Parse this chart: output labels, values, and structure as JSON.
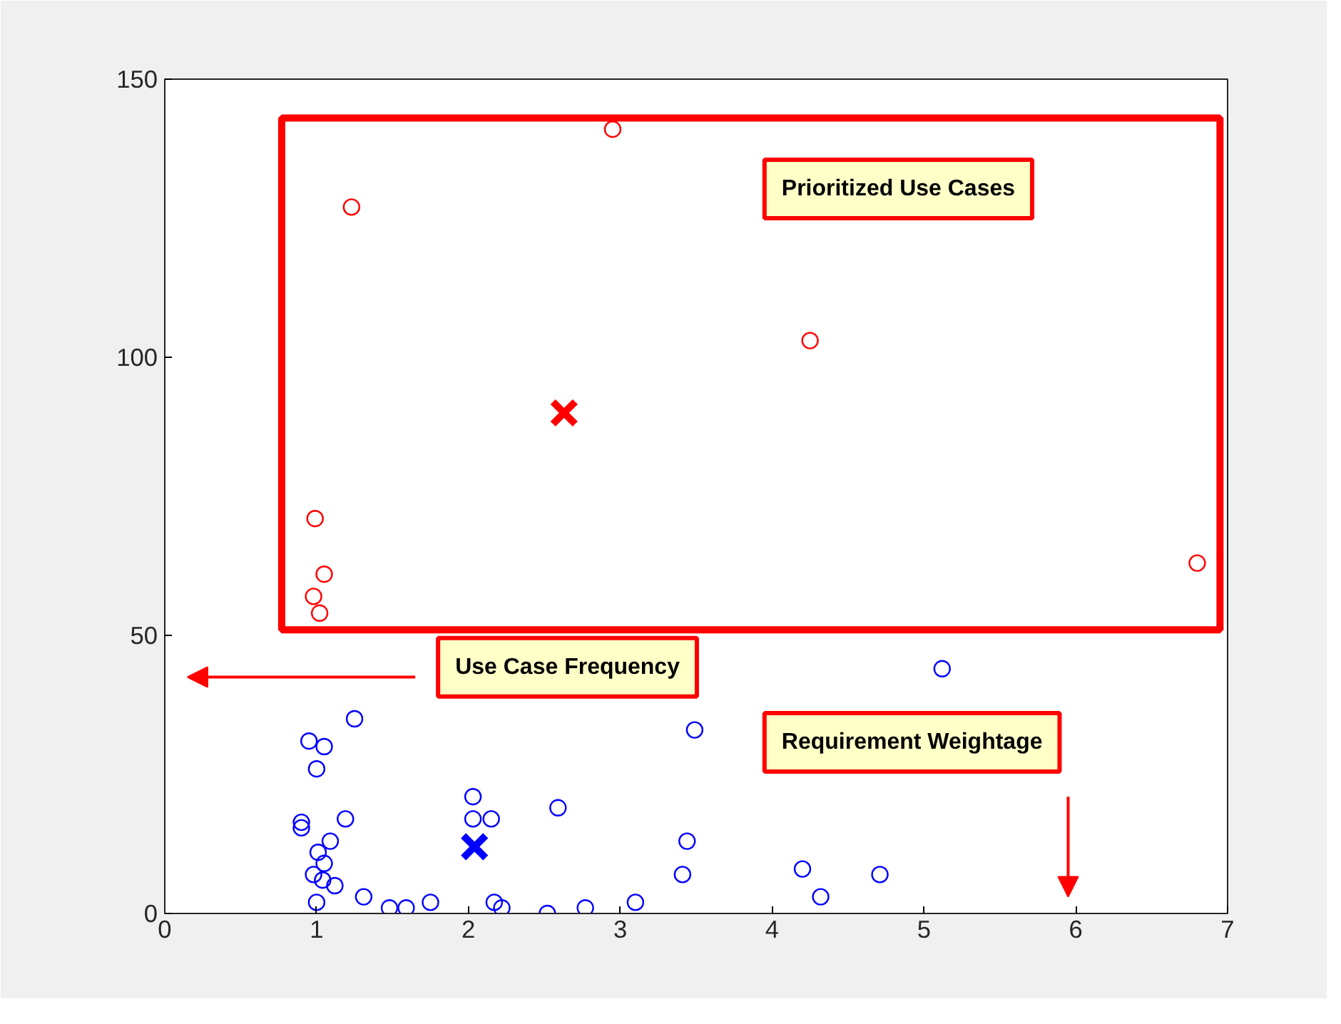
{
  "chart_data": {
    "type": "scatter",
    "xlim": [
      0,
      7
    ],
    "ylim": [
      0,
      150
    ],
    "xticks": [
      0,
      1,
      2,
      3,
      4,
      5,
      6,
      7
    ],
    "yticks": [
      0,
      50,
      100,
      150
    ],
    "grid": false,
    "series": [
      {
        "color": "#ff0000",
        "marker": "circle",
        "x": [
          1.23,
          2.95,
          4.25,
          0.99,
          1.05,
          0.98,
          1.02,
          6.8
        ],
        "values": [
          127,
          141,
          103,
          71,
          61,
          57,
          54,
          63
        ]
      },
      {
        "color": "#0000ff",
        "marker": "circle",
        "x": [
          1.25,
          0.95,
          1.05,
          1.0,
          0.9,
          0.9,
          1.19,
          1.09,
          1.01,
          1.05,
          0.98,
          1.04,
          1.12,
          1.0,
          1.31,
          1.48,
          1.59,
          1.75,
          2.03,
          2.03,
          2.15,
          2.17,
          2.22,
          2.52,
          2.59,
          2.77,
          3.1,
          3.49,
          5.12,
          3.44,
          3.41,
          4.2,
          4.32,
          4.71
        ],
        "values": [
          35,
          31,
          30,
          26,
          16.4,
          15.4,
          17,
          13,
          11,
          9,
          7,
          6,
          5,
          2,
          3,
          1,
          1,
          2,
          21,
          17,
          17,
          2,
          1,
          0,
          19,
          1,
          2,
          33,
          44,
          13,
          7,
          8,
          3,
          7
        ]
      },
      {
        "color": "#ff0000",
        "marker": "cross",
        "x": [
          2.63
        ],
        "values": [
          90
        ]
      },
      {
        "color": "#0000ff",
        "marker": "cross",
        "x": [
          2.04
        ],
        "values": [
          12
        ]
      }
    ],
    "annotations": [
      "Prioritized Use Cases",
      "Use Case Frequency",
      "Requirement Weightage"
    ]
  }
}
